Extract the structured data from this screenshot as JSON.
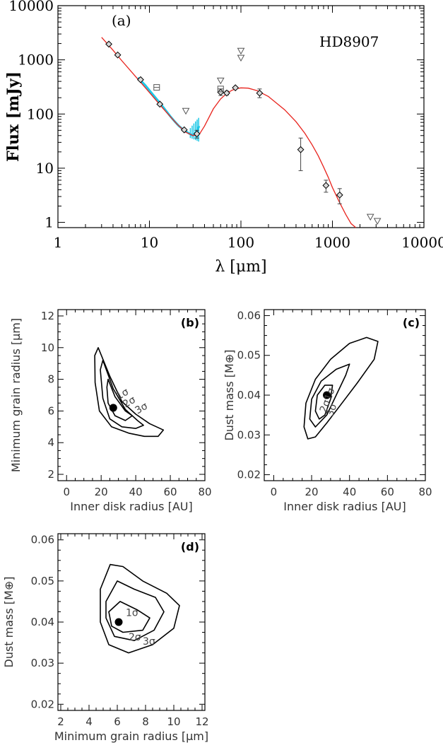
{
  "chart_data": [
    {
      "type": "scatter",
      "panel": "(a)",
      "annotation": "HD8907",
      "xlabel": "λ [μm]",
      "ylabel": "Flux [mJy]",
      "xscale": "log",
      "yscale": "log",
      "xlim": [
        1,
        10000
      ],
      "ylim": [
        0.8,
        10000
      ],
      "xticklabels": [
        "1",
        "10",
        "100",
        "1000",
        "10000"
      ],
      "yticklabels": [
        "1",
        "10",
        "100",
        "1000",
        "10000"
      ],
      "detections": [
        {
          "x": 3.6,
          "y": 1950
        },
        {
          "x": 4.5,
          "y": 1230
        },
        {
          "x": 8.0,
          "y": 430
        },
        {
          "x": 13.0,
          "y": 152
        },
        {
          "x": 24.0,
          "y": 51
        },
        {
          "x": 33.0,
          "y": 43,
          "err_low": 36,
          "err_high": 50
        },
        {
          "x": 60.0,
          "y": 252,
          "err_low": 220,
          "err_high": 290
        },
        {
          "x": 70.0,
          "y": 244,
          "err_low": 225,
          "err_high": 265
        },
        {
          "x": 87.0,
          "y": 305,
          "err_low": 290,
          "err_high": 320
        },
        {
          "x": 160.0,
          "y": 243,
          "err_low": 200,
          "err_high": 290
        },
        {
          "x": 450.0,
          "y": 22,
          "err_low": 9,
          "err_high": 36
        },
        {
          "x": 850.0,
          "y": 4.8,
          "err_low": 3.6,
          "err_high": 6.0
        },
        {
          "x": 1200.0,
          "y": 3.2,
          "err_low": 2.2,
          "err_high": 4.2
        }
      ],
      "square_points": [
        {
          "x": 12.0,
          "y": 310
        },
        {
          "x": 60.0,
          "y": 290
        }
      ],
      "upper_limits": [
        {
          "x": 25.0,
          "y": 113
        },
        {
          "x": 60.0,
          "y": 410
        },
        {
          "x": 100.0,
          "y": 1450
        },
        {
          "x": 100.0,
          "y": 1080
        },
        {
          "x": 2600.0,
          "y": 1.25
        },
        {
          "x": 3100.0,
          "y": 1.05
        }
      ],
      "model_curve": {
        "color": "#e8231d",
        "points": [
          [
            3.0,
            2600
          ],
          [
            4,
            1500
          ],
          [
            5,
            960
          ],
          [
            7,
            500
          ],
          [
            10,
            250
          ],
          [
            14,
            128
          ],
          [
            20,
            65
          ],
          [
            25,
            46
          ],
          [
            30,
            40
          ],
          [
            35,
            42
          ],
          [
            40,
            60
          ],
          [
            50,
            125
          ],
          [
            60,
            190
          ],
          [
            70,
            240
          ],
          [
            80,
            275
          ],
          [
            90,
            295
          ],
          [
            100,
            304
          ],
          [
            120,
            300
          ],
          [
            150,
            270
          ],
          [
            200,
            210
          ],
          [
            300,
            120
          ],
          [
            400,
            72
          ],
          [
            500,
            44
          ],
          [
            600,
            27
          ],
          [
            700,
            17
          ],
          [
            800,
            10.5
          ],
          [
            900,
            6.8
          ],
          [
            1000,
            4.4
          ],
          [
            1200,
            2.3
          ],
          [
            1400,
            1.4
          ],
          [
            1600,
            0.95
          ],
          [
            1800,
            0.8
          ]
        ]
      },
      "spectrum": {
        "color": "#1ec8e6",
        "points": [
          [
            7.5,
            470
          ],
          [
            9,
            340
          ],
          [
            11,
            225
          ],
          [
            13,
            160
          ],
          [
            15,
            118
          ],
          [
            17,
            90
          ],
          [
            19,
            72
          ],
          [
            21,
            60
          ],
          [
            23,
            53
          ],
          [
            25,
            48
          ],
          [
            27,
            44
          ],
          [
            29,
            41
          ],
          [
            31,
            42
          ],
          [
            33,
            48
          ],
          [
            35,
            60
          ]
        ]
      }
    },
    {
      "type": "contour",
      "panel": "(b)",
      "xlabel": "Inner disk radius [AU]",
      "ylabel": "Minimum grain radius [μm]",
      "xlim": [
        -5,
        80
      ],
      "ylim": [
        1.6,
        12.4
      ],
      "xticklabels": [
        "0",
        "20",
        "40",
        "60",
        "80"
      ],
      "yticklabels": [
        "2",
        "4",
        "6",
        "8",
        "10",
        "12"
      ],
      "best_fit": {
        "x": 27,
        "y": 6.2
      },
      "contour_labels": [
        "1σ",
        "2σ",
        "3σ"
      ],
      "contours": [
        {
          "level": "3σ",
          "points": [
            [
              18.3,
              10
            ],
            [
              25,
              8.2
            ],
            [
              32,
              6.6
            ],
            [
              40,
              5.8
            ],
            [
              48,
              5.2
            ],
            [
              56,
              4.8
            ],
            [
              53,
              4.4
            ],
            [
              45,
              4.4
            ],
            [
              36,
              4.6
            ],
            [
              26,
              5.0
            ],
            [
              19,
              6.0
            ],
            [
              16.5,
              7.8
            ],
            [
              16.3,
              9.5
            ]
          ]
        },
        {
          "level": "2σ",
          "points": [
            [
              21,
              9.2
            ],
            [
              27,
              7.4
            ],
            [
              34,
              6.1
            ],
            [
              41,
              5.4
            ],
            [
              44.5,
              5.1
            ],
            [
              40,
              4.9
            ],
            [
              32,
              5.0
            ],
            [
              25,
              5.5
            ],
            [
              21,
              6.8
            ],
            [
              19.5,
              8.6
            ]
          ]
        },
        {
          "level": "1σ",
          "points": [
            [
              24,
              8.0
            ],
            [
              28,
              6.9
            ],
            [
              34,
              6.0
            ],
            [
              38,
              5.7
            ],
            [
              34,
              5.4
            ],
            [
              28,
              5.7
            ],
            [
              24,
              6.5
            ],
            [
              23.3,
              7.5
            ]
          ]
        }
      ]
    },
    {
      "type": "contour",
      "panel": "(c)",
      "xlabel": "Inner disk radius [AU]",
      "ylabel": "Dust mass [M⊕]",
      "xlim": [
        -5,
        80
      ],
      "ylim": [
        0.0185,
        0.0615
      ],
      "xticklabels": [
        "0",
        "20",
        "40",
        "60",
        "80"
      ],
      "yticklabels": [
        "0.02",
        "0.03",
        "0.04",
        "0.05",
        "0.06"
      ],
      "best_fit": {
        "x": 28,
        "y": 0.04
      },
      "contour_labels": [
        "1σ",
        "2σ",
        "3σ"
      ],
      "contours": [
        {
          "level": "3σ",
          "points": [
            [
              16,
              0.032
            ],
            [
              17,
              0.038
            ],
            [
              22,
              0.044
            ],
            [
              30,
              0.049
            ],
            [
              40,
              0.053
            ],
            [
              49,
              0.0545
            ],
            [
              55,
              0.0535
            ],
            [
              53,
              0.049
            ],
            [
              44,
              0.043
            ],
            [
              36,
              0.038
            ],
            [
              28,
              0.033
            ],
            [
              22,
              0.0295
            ],
            [
              18,
              0.029
            ]
          ]
        },
        {
          "level": "2σ",
          "points": [
            [
              19,
              0.034
            ],
            [
              20,
              0.039
            ],
            [
              25,
              0.0435
            ],
            [
              33,
              0.0465
            ],
            [
              40,
              0.0478
            ],
            [
              38,
              0.045
            ],
            [
              33,
              0.04
            ],
            [
              28,
              0.035
            ],
            [
              22,
              0.032
            ]
          ]
        },
        {
          "level": "1σ",
          "points": [
            [
              22,
              0.036
            ],
            [
              23,
              0.04
            ],
            [
              27,
              0.0425
            ],
            [
              31,
              0.0425
            ],
            [
              30,
              0.039
            ],
            [
              27,
              0.035
            ],
            [
              24,
              0.034
            ]
          ]
        }
      ]
    },
    {
      "type": "contour",
      "panel": "(d)",
      "xlabel": "Minimum grain radius [μm]",
      "ylabel": "Dust mass [M⊕]",
      "xlim": [
        1.8,
        12.2
      ],
      "ylim": [
        0.0185,
        0.0615
      ],
      "xticklabels": [
        "2",
        "4",
        "6",
        "8",
        "10",
        "12"
      ],
      "yticklabels": [
        "0.02",
        "0.03",
        "0.04",
        "0.05",
        "0.06"
      ],
      "best_fit": {
        "x": 6.1,
        "y": 0.04
      },
      "contour_labels": [
        "1σ",
        "2σ",
        "3σ"
      ],
      "contours": [
        {
          "level": "3σ",
          "points": [
            [
              4.8,
              0.048
            ],
            [
              5.5,
              0.054
            ],
            [
              6.4,
              0.0535
            ],
            [
              7.8,
              0.05
            ],
            [
              9.5,
              0.047
            ],
            [
              10.4,
              0.044
            ],
            [
              10,
              0.0385
            ],
            [
              8.5,
              0.0345
            ],
            [
              6.8,
              0.0325
            ],
            [
              5.4,
              0.0345
            ],
            [
              4.8,
              0.04
            ]
          ]
        },
        {
          "level": "2σ",
          "points": [
            [
              5.2,
              0.045
            ],
            [
              6,
              0.05
            ],
            [
              7.2,
              0.048
            ],
            [
              8.7,
              0.046
            ],
            [
              9.3,
              0.0425
            ],
            [
              8.6,
              0.038
            ],
            [
              7.2,
              0.0355
            ],
            [
              5.8,
              0.0365
            ],
            [
              5.2,
              0.041
            ]
          ]
        },
        {
          "level": "1σ",
          "points": [
            [
              5.4,
              0.0425
            ],
            [
              6.2,
              0.045
            ],
            [
              7.4,
              0.043
            ],
            [
              8.3,
              0.041
            ],
            [
              7.8,
              0.038
            ],
            [
              6.4,
              0.0375
            ],
            [
              5.6,
              0.039
            ]
          ]
        }
      ]
    }
  ]
}
